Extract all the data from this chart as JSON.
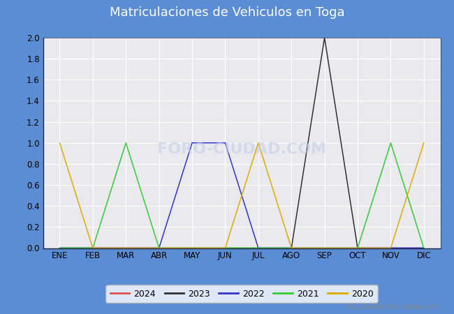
{
  "title": "Matriculaciones de Vehiculos en Toga",
  "title_bgcolor": "#5b8dd4",
  "title_color": "white",
  "months": [
    "ENE",
    "FEB",
    "MAR",
    "ABR",
    "MAY",
    "JUN",
    "JUL",
    "AGO",
    "SEP",
    "OCT",
    "NOV",
    "DIC"
  ],
  "series": {
    "2024": {
      "values": [
        0,
        0,
        0,
        0,
        0,
        0,
        0,
        0,
        0,
        0,
        0,
        0
      ],
      "color": "#e05050"
    },
    "2023": {
      "values": [
        0,
        0,
        0,
        0,
        0,
        0,
        0,
        0,
        2,
        0,
        0,
        0
      ],
      "color": "#303030"
    },
    "2022": {
      "values": [
        0,
        0,
        0,
        0,
        1,
        1,
        0,
        0,
        0,
        0,
        0,
        0
      ],
      "color": "#3333cc"
    },
    "2021": {
      "values": [
        0,
        0,
        1,
        0,
        0,
        0,
        0,
        0,
        0,
        0,
        1,
        0
      ],
      "color": "#33cc33"
    },
    "2020": {
      "values": [
        1,
        0,
        0,
        0,
        0,
        0,
        1,
        0,
        0,
        0,
        0,
        1
      ],
      "color": "#ddaa00"
    }
  },
  "ylim": [
    0,
    2.0
  ],
  "yticks": [
    0.0,
    0.2,
    0.4,
    0.6,
    0.8,
    1.0,
    1.2,
    1.4,
    1.6,
    1.8,
    2.0
  ],
  "outer_bg_color": "#5b8dd4",
  "inner_bg_color": "#e8e8ec",
  "plot_bg_color": "#eaeaee",
  "grid_color": "#ffffff",
  "watermark": "http://www.foro-ciudad.com",
  "legend_order": [
    "2024",
    "2023",
    "2022",
    "2021",
    "2020"
  ],
  "title_fontsize": 13,
  "tick_fontsize": 8.5
}
